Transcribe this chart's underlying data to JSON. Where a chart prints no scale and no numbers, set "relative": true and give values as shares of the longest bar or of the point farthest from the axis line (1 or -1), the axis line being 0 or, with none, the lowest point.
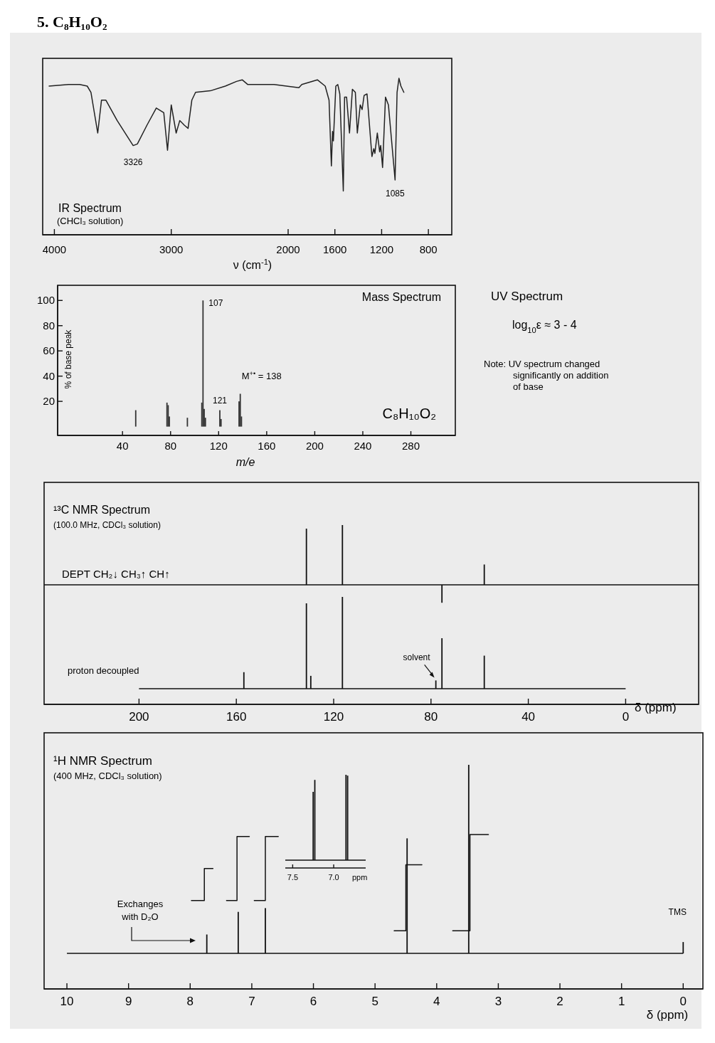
{
  "chart_data": [
    {
      "type": "line",
      "title": "5. C₈H₁₀O₂",
      "subtitle": "IR Spectrum",
      "xlabel": "ν (cm$^{-1}$)",
      "relative": true,
      "xlim": [
        4100,
        600
      ],
      "xticks": [
        4000,
        3000,
        2000,
        1600,
        1200,
        800
      ],
      "color": "#222222",
      "annotations": [
        {
          "text": "3326",
          "x": 3326,
          "y": 0.57
        },
        {
          "text": "1085",
          "x": 1085,
          "y": 0.35
        },
        "(CHCl₃ solution)"
      ],
      "x": [
        4045,
        3879,
        3783,
        3719,
        3687,
        3629,
        3597,
        3559,
        3463,
        3326,
        3290,
        3208,
        3128,
        3064,
        3032,
        3000,
        2958,
        2927,
        2888,
        2856,
        2824,
        2792,
        2665,
        2537,
        2441,
        2393,
        2345,
        2121,
        1908,
        1883,
        1750,
        1683,
        1650,
        1630,
        1620,
        1613,
        1592,
        1575,
        1558,
        1528,
        1517,
        1500,
        1475,
        1450,
        1425,
        1408,
        1383,
        1367,
        1350,
        1325,
        1283,
        1267,
        1258,
        1237,
        1217,
        1208,
        1192,
        1167,
        1142,
        1085,
        1068,
        1052,
        1035,
        1010
      ],
      "values": [
        0.95,
        0.96,
        0.96,
        0.95,
        0.91,
        0.65,
        0.86,
        0.86,
        0.73,
        0.57,
        0.58,
        0.7,
        0.81,
        0.78,
        0.54,
        0.83,
        0.65,
        0.73,
        0.7,
        0.68,
        0.86,
        0.91,
        0.92,
        0.95,
        0.98,
        0.99,
        0.96,
        0.96,
        0.94,
        0.96,
        0.99,
        0.95,
        0.86,
        0.44,
        0.66,
        0.6,
        0.95,
        0.96,
        0.9,
        0.28,
        0.88,
        0.88,
        0.65,
        0.93,
        0.91,
        0.65,
        0.83,
        0.8,
        0.89,
        0.9,
        0.5,
        0.55,
        0.52,
        0.65,
        0.53,
        0.57,
        0.43,
        0.88,
        0.83,
        0.35,
        0.91,
        1,
        0.95,
        0.91
      ]
    },
    {
      "type": "bar",
      "title": "Mass Spectrum",
      "xlabel": "m/e",
      "ylabel": "% of base peak",
      "xlim": [
        -14,
        317
      ],
      "xticks": [
        40,
        80,
        120,
        160,
        200,
        240,
        280
      ],
      "ylim": [
        -7,
        112
      ],
      "yticks": [
        20,
        40,
        60,
        80,
        100
      ],
      "color": "#333333",
      "annotations": [
        {
          "text": "107",
          "x": 107,
          "y": 100
        },
        {
          "text": "121",
          "x": 121,
          "y": 13
        },
        {
          "text": "M$^{+•}$ = 138",
          "x": 138,
          "y": 26
        },
        "C₈H₁₀O₂"
      ],
      "x": [
        51,
        77,
        78,
        79,
        94,
        106,
        107,
        108,
        109,
        121,
        122,
        137,
        138,
        139
      ],
      "values": [
        13,
        19,
        17,
        8,
        7,
        19,
        100,
        14,
        7,
        13,
        6,
        20,
        26,
        8
      ]
    },
    {
      "type": "other",
      "title": "UV Spectrum",
      "annotations": [
        "log$_{10}$ε ≈ 3 - 4",
        "Note: UV spectrum changed significantly on addition of base"
      ]
    },
    {
      "type": "bar",
      "title": "¹³C NMR Spectrum",
      "subtitle": "(100.0 MHz, CDCl₃ solution)",
      "relative": true,
      "xlim": [
        239,
        -30
      ],
      "color": "#111111",
      "annotations": [
        "DEPT  CH₂↓ CH₃↑ CH↑"
      ],
      "x": [
        131.2,
        116.4,
        75.5,
        58.1
      ],
      "values": [
        0.94,
        1,
        -0.3,
        0.34
      ]
    },
    {
      "type": "bar",
      "relative": true,
      "xlim": [
        239,
        -30
      ],
      "xlabel": "δ (ppm)",
      "color": "#111111",
      "xticks": [
        200,
        160,
        120,
        80,
        40,
        0
      ],
      "annotations": [
        "proton decoupled",
        {
          "text": "solvent",
          "x": 78,
          "y": 0.09
        }
      ],
      "x": [
        156.9,
        131.2,
        129.4,
        116.4,
        78,
        75.5,
        58.1
      ],
      "values": [
        0.18,
        0.93,
        0.14,
        1,
        0.09,
        0.55,
        0.36
      ]
    },
    {
      "type": "bar",
      "title": "¹H NMR Spectrum",
      "subtitle": "(400 MHz, CDCl₃ solution)",
      "relative": true,
      "xlim": [
        10.37,
        -0.32
      ],
      "xlabel": "δ (ppm)",
      "xticks": [
        10,
        9,
        8,
        7,
        6,
        5,
        4,
        3,
        2,
        1,
        0
      ],
      "annotations": [
        "Exchanges with D₂O",
        {
          "text": "TMS",
          "x": 0,
          "y": 0.06
        }
      ],
      "series": [
        {
          "type": "bar",
          "color": "#111111",
          "x": [
            7.73,
            7.22,
            6.78,
            4.48,
            3.48,
            0
          ],
          "values": [
            0.1,
            0.22,
            0.24,
            0.61,
            1,
            0.06
          ]
        },
        {
          "type": "step",
          "color": "#111111",
          "x": [
            7.98,
            7.77,
            7.63
          ],
          "values": [
            0.28,
            0.45,
            0.45
          ]
        },
        {
          "type": "step",
          "color": "#111111",
          "x": [
            7.41,
            7.24,
            7.04
          ],
          "values": [
            0.28,
            0.62,
            0.62
          ]
        },
        {
          "type": "step",
          "color": "#111111",
          "x": [
            6.96,
            6.78,
            6.57
          ],
          "values": [
            0.28,
            0.62,
            0.62
          ]
        },
        {
          "type": "step",
          "color": "#111111",
          "x": [
            4.69,
            4.5,
            4.24
          ],
          "values": [
            0.12,
            0.47,
            0.47
          ]
        },
        {
          "type": "step",
          "color": "#111111",
          "x": [
            3.74,
            3.46,
            3.16
          ],
          "values": [
            0.12,
            0.63,
            0.63
          ]
        }
      ]
    },
    {
      "type": "bar",
      "relative": true,
      "xlim": [
        7.59,
        6.61
      ],
      "xticks": [
        7.5,
        {
          "value": 7,
          "label": "7.0"
        }
      ],
      "xlabel": "ppm",
      "color": "#111111",
      "x": [
        7.25,
        7.23,
        6.85,
        6.83
      ],
      "values": [
        0.8,
        0.94,
        1,
        0.99
      ]
    }
  ]
}
